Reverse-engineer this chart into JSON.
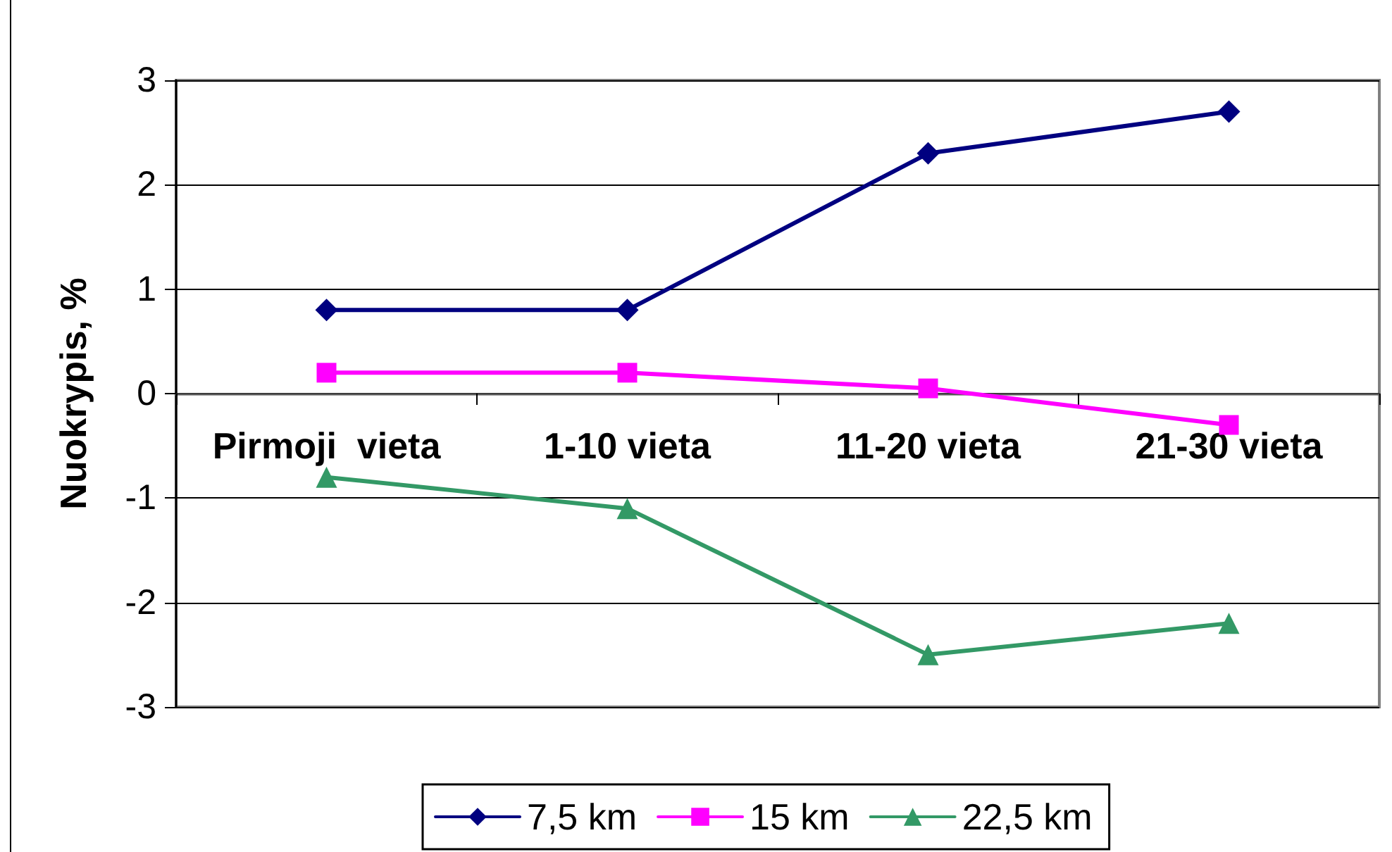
{
  "chart_data": {
    "type": "line",
    "ylabel": "Nuokrypis, %",
    "categories": [
      "Pirmoji  vieta",
      "1-10 vieta",
      "11-20 vieta",
      "21-30 vieta"
    ],
    "series": [
      {
        "name": "7,5 km",
        "color": "#000080",
        "marker": "diamond",
        "values": [
          0.8,
          0.8,
          2.3,
          2.7
        ]
      },
      {
        "name": "15 km",
        "color": "#ff00ff",
        "marker": "square",
        "values": [
          0.2,
          0.2,
          0.05,
          -0.3
        ]
      },
      {
        "name": "22,5 km",
        "color": "#339966",
        "marker": "triangle",
        "values": [
          -0.8,
          -1.1,
          -2.5,
          -2.2
        ]
      }
    ],
    "ylim": [
      -3,
      3
    ],
    "yticks": [
      -3,
      -2,
      -1,
      0,
      1,
      2,
      3
    ],
    "grid": "y",
    "legend": "bottom",
    "line_style": "solid"
  }
}
